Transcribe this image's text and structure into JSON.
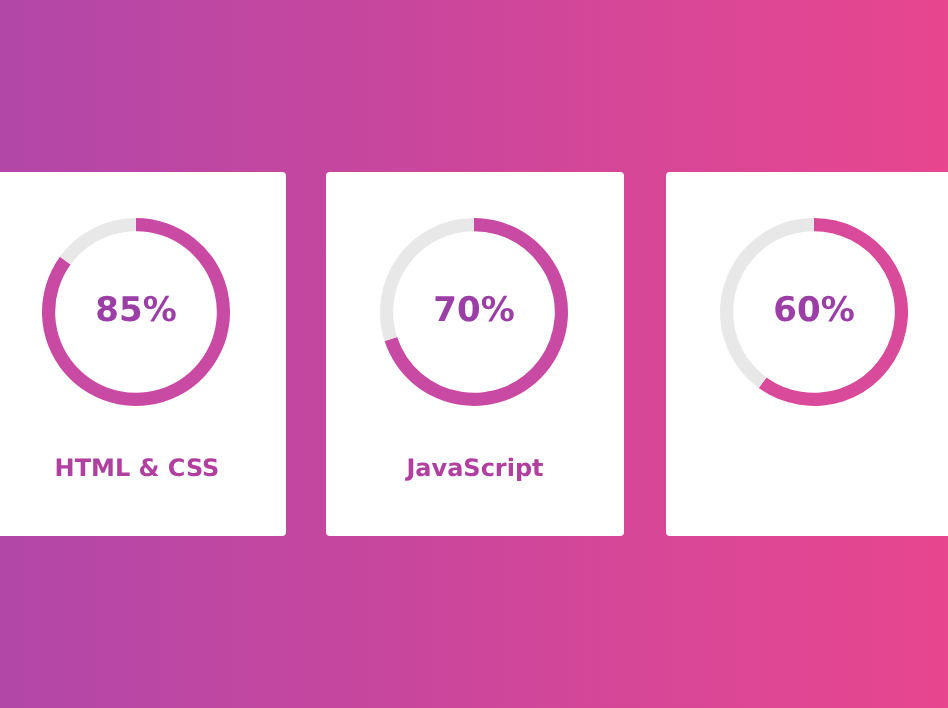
{
  "chart_data": [
    {
      "type": "donut",
      "categories": [
        "HTML & CSS",
        null
      ],
      "values": [
        85,
        15
      ],
      "colors": [
        "#c94aa3",
        "#e8e8e8"
      ],
      "value_labels": [
        "85%",
        null
      ]
    },
    {
      "type": "donut",
      "categories": [
        "JavaScript",
        null
      ],
      "values": [
        70,
        30
      ],
      "colors": [
        "#c94aa3",
        "#e8e8e8"
      ],
      "value_labels": [
        "70%",
        null
      ]
    },
    {
      "type": "donut",
      "categories": [
        null,
        null
      ],
      "values": [
        60,
        40
      ],
      "colors": [
        "#d94a9a",
        "#e8e8e8"
      ],
      "value_labels": [
        "60%",
        null
      ]
    }
  ]
}
